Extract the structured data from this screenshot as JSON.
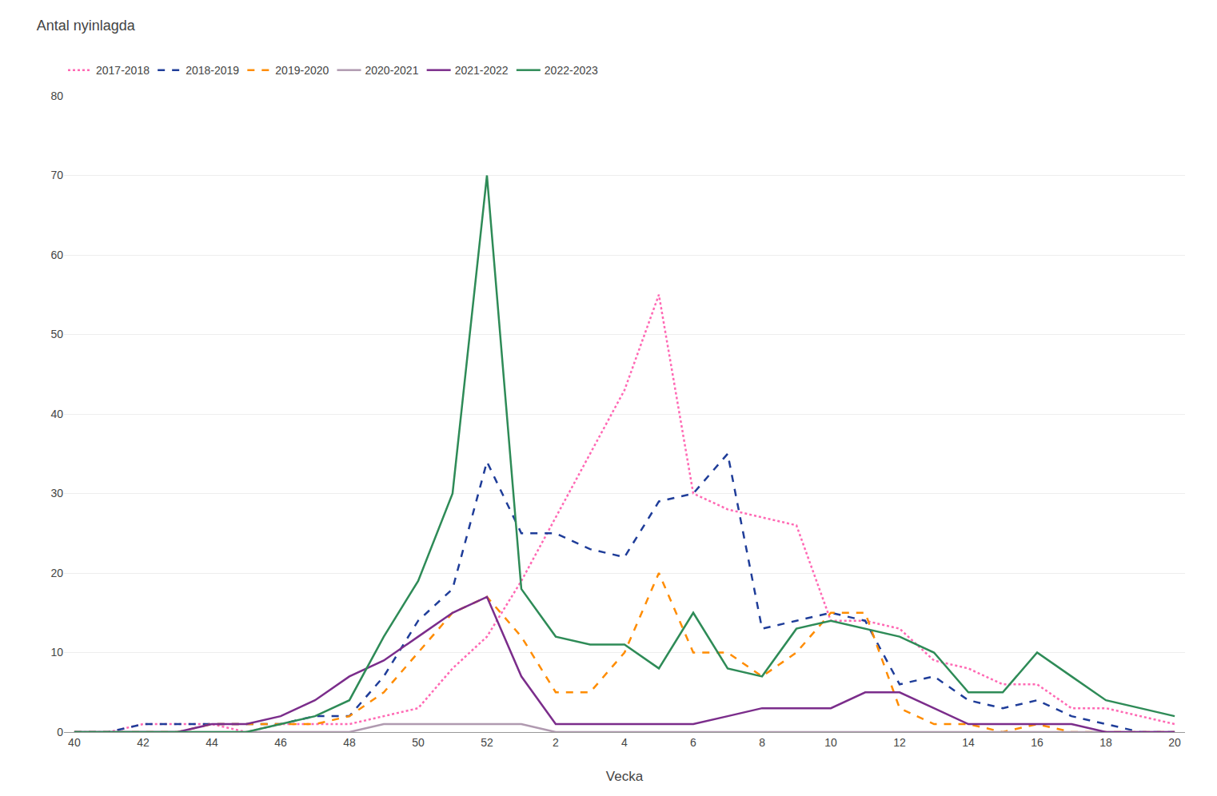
{
  "chart_data": {
    "type": "line",
    "title": "Antal nyinlagda",
    "x_label": "Vecka",
    "categories": [
      "40",
      null,
      "42",
      null,
      "44",
      null,
      "46",
      null,
      "48",
      null,
      "50",
      null,
      "52",
      null,
      "2",
      null,
      "4",
      null,
      "6",
      null,
      "8",
      null,
      "10",
      null,
      "12",
      null,
      "14",
      null,
      "16",
      null,
      "18",
      null,
      "20"
    ],
    "series": [
      {
        "name": "2017-2018",
        "color": "#ff69b4",
        "line_style": "dotted",
        "values": [
          0,
          0,
          1,
          1,
          1,
          0,
          1,
          1,
          1,
          2,
          3,
          8,
          12,
          19,
          27,
          35,
          43,
          55,
          30,
          28,
          27,
          26,
          14,
          14,
          13,
          9,
          8,
          6,
          6,
          3,
          3,
          2,
          1
        ]
      },
      {
        "name": "2018-2019",
        "color": "#1f3d99",
        "line_style": "dashed",
        "values": [
          0,
          0,
          1,
          1,
          1,
          1,
          1,
          2,
          2,
          7,
          14,
          18,
          34,
          25,
          25,
          23,
          22,
          29,
          30,
          35,
          13,
          14,
          15,
          14,
          6,
          7,
          4,
          3,
          4,
          2,
          1,
          0,
          0
        ]
      },
      {
        "name": "2019-2020",
        "color": "#ff8c00",
        "line_style": "dashed",
        "values": [
          0,
          0,
          0,
          0,
          1,
          1,
          1,
          1,
          2,
          5,
          10,
          15,
          17,
          12,
          5,
          5,
          10,
          20,
          10,
          10,
          7,
          10,
          15,
          15,
          3,
          1,
          1,
          0,
          1,
          0,
          0,
          0,
          0
        ]
      },
      {
        "name": "2020-2021",
        "color": "#b09ab0",
        "line_style": "solid",
        "values": [
          0,
          0,
          0,
          0,
          0,
          0,
          0,
          0,
          0,
          1,
          1,
          1,
          1,
          1,
          0,
          0,
          0,
          0,
          0,
          0,
          0,
          0,
          0,
          0,
          0,
          0,
          0,
          0,
          0,
          0,
          0,
          0,
          0
        ]
      },
      {
        "name": "2021-2022",
        "color": "#7b2d8b",
        "line_style": "solid",
        "values": [
          0,
          0,
          0,
          0,
          1,
          1,
          2,
          4,
          7,
          9,
          12,
          15,
          17,
          7,
          1,
          1,
          1,
          1,
          1,
          2,
          3,
          3,
          3,
          5,
          5,
          3,
          1,
          1,
          1,
          1,
          0,
          0,
          0
        ]
      },
      {
        "name": "2022-2023",
        "color": "#2e8b57",
        "line_style": "solid",
        "values": [
          0,
          0,
          0,
          0,
          0,
          0,
          1,
          2,
          4,
          12,
          19,
          30,
          70,
          18,
          12,
          11,
          11,
          8,
          15,
          8,
          7,
          13,
          14,
          13,
          12,
          10,
          5,
          5,
          10,
          7,
          4,
          3,
          2
        ]
      }
    ],
    "ylim": [
      0,
      80
    ],
    "yticks": [
      0,
      10,
      20,
      30,
      40,
      50,
      60,
      70,
      80
    ],
    "grid": true,
    "legend": "top"
  }
}
